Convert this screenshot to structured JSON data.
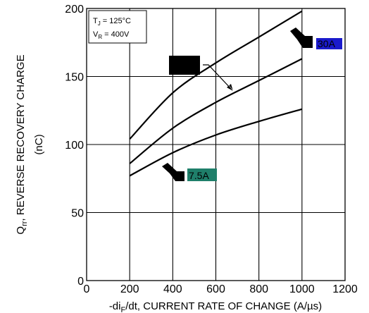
{
  "chart_data": {
    "type": "line",
    "xlabel": "-di",
    "xlabel_sub": "F",
    "xlabel_rest": "/dt, CURRENT RATE OF CHANGE (A/µs)",
    "ylabel_line1_main": "Q",
    "ylabel_line1_sub": "rr",
    "ylabel_line1_rest": ", REVERSE RECOVERY CHARGE",
    "ylabel_line2": "(nC)",
    "xlim": [
      0,
      1200
    ],
    "ylim": [
      0,
      200
    ],
    "xticks": [
      "0",
      "200",
      "400",
      "600",
      "800",
      "1000",
      "1200"
    ],
    "yticks": [
      "0",
      "50",
      "100",
      "150",
      "200"
    ],
    "grid": true,
    "conditions": {
      "tj_main": "T",
      "tj_sub": "J",
      "tj_rest": " = 125°C",
      "vr_main": "V",
      "vr_sub": "R",
      "vr_rest": " = 400V"
    },
    "series": [
      {
        "name": "30A",
        "label_color": "#1a1acc",
        "x": [
          200,
          400,
          600,
          800,
          1000
        ],
        "y": [
          104,
          138,
          160,
          179,
          198
        ]
      },
      {
        "name": "",
        "x": [
          200,
          400,
          600,
          800,
          1000
        ],
        "y": [
          86,
          112,
          131,
          147,
          163
        ]
      },
      {
        "name": "7.5A",
        "label_color": "#1f7f6a",
        "x": [
          200,
          400,
          600,
          800,
          1000
        ],
        "y": [
          77,
          94,
          107,
          117,
          126
        ]
      }
    ]
  }
}
